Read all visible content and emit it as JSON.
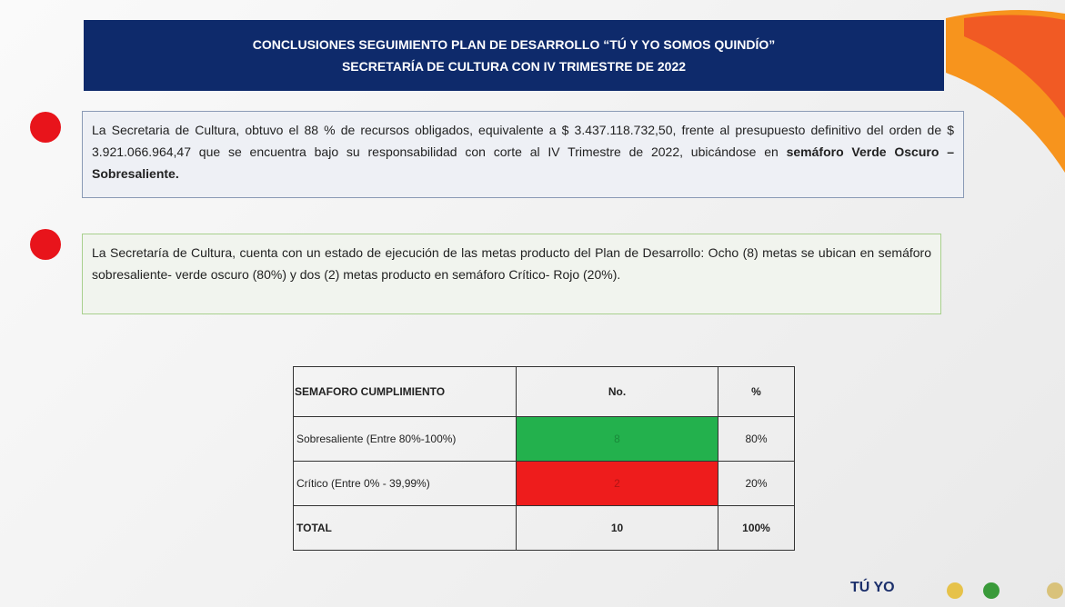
{
  "header": {
    "title_line1": "CONCLUSIONES SEGUIMIENTO PLAN DE DESARROLLO “TÚ Y YO SOMOS QUINDÍO”",
    "title_line2": "SECRETARÍA  DE CULTURA CON IV TRIMESTRE DE 2022"
  },
  "paragraphs": [
    {
      "text": "La Secretaria de Cultura, obtuvo el  88 % de recursos obligados, equivalente a $ 3.437.118.732,50,  frente al presupuesto definitivo  del orden de $ 3.921.066.964,47 que se encuentra  bajo su responsabilidad con corte al  IV  Trimestre de  2022, ubicándose en ",
      "bold": "semáforo Verde Oscuro – Sobresaliente."
    },
    {
      "text": "La Secretaría de Cultura, cuenta con un estado de ejecución de las metas producto del Plan de Desarrollo: Ocho (8) metas  se ubican en semáforo sobresaliente- verde oscuro (80%) y dos (2) metas producto en semáforo Crítico- Rojo  (20%)."
    }
  ],
  "table": {
    "header": [
      "SEMAFORO CUMPLIMIENTO",
      "No.",
      "%"
    ],
    "rows": [
      [
        "Sobresaliente  (Entre 80%-100%)",
        "8",
        "80%"
      ],
      [
        "Crítico (Entre 0% - 39,99%)",
        "2",
        "20%"
      ],
      [
        "TOTAL",
        "10",
        "100%"
      ]
    ]
  },
  "logos": [
    "TÚ YO"
  ]
}
